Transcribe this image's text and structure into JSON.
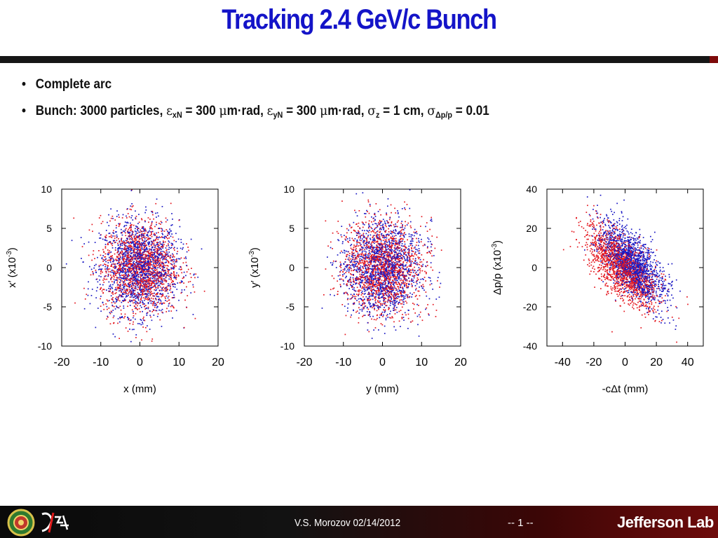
{
  "slide": {
    "title": "Tracking 2.4 GeV/c Bunch",
    "bullets": {
      "b1": "Complete arc",
      "b2": {
        "t1": "Bunch: 3000 particles, ",
        "eps": "ε",
        "sub_x": "xN",
        "t2": " = 300 ",
        "mu1": "μ",
        "t3": "m·rad, ",
        "eps2": "ε",
        "sub_y": "yN",
        "t4": " = 300 ",
        "mu2": "μ",
        "t5": "m·rad, ",
        "sig1": "σ",
        "sub_z": "z",
        "t6": " = 1 cm, ",
        "sig2": "σ",
        "sub_dp": "Δp/p",
        "t7": " = 0.01"
      }
    },
    "bullet_marker": "•"
  },
  "footer": {
    "author": "V.S. Morozov 02/14/2012",
    "page": "-- 1 --",
    "lab": "Jefferson Lab",
    "logo_left_icon": "circular-seal-icon",
    "logo_mid_icon": "eic-ejsa-logo-icon"
  },
  "colors": {
    "title": "#1414c8",
    "series_a": "#e4171f",
    "series_b": "#1b19c4"
  },
  "chart_data": [
    {
      "type": "scatter",
      "xlabel": "x (mm)",
      "ylabel": "x′ (x10",
      "ylabel_exp": "-3",
      "ylabel_end": ")",
      "xlim": [
        -20,
        20
      ],
      "ylim": [
        -10,
        10
      ],
      "xticks": [
        -20,
        -10,
        0,
        10,
        20
      ],
      "yticks": [
        -10,
        -5,
        0,
        5,
        10
      ],
      "series": [
        {
          "color": "#1b19c4",
          "count": 1500,
          "sigma": [
            5,
            3
          ],
          "corr": 0
        },
        {
          "color": "#e4171f",
          "count": 1500,
          "sigma": [
            5,
            3
          ],
          "corr": 0
        }
      ]
    },
    {
      "type": "scatter",
      "xlabel": "y (mm)",
      "ylabel": "y′ (x10",
      "ylabel_exp": "-3",
      "ylabel_end": ")",
      "xlim": [
        -20,
        20
      ],
      "ylim": [
        -10,
        10
      ],
      "xticks": [
        -20,
        -10,
        0,
        10,
        20
      ],
      "yticks": [
        -10,
        -5,
        0,
        5,
        10
      ],
      "series": [
        {
          "color": "#1b19c4",
          "count": 1500,
          "sigma": [
            5,
            3
          ],
          "corr": 0
        },
        {
          "color": "#e4171f",
          "count": 1500,
          "sigma": [
            5,
            3
          ],
          "corr": 0
        }
      ]
    },
    {
      "type": "scatter",
      "xlabel": "-cΔt (mm)",
      "ylabel": "Δp/p  (x10",
      "ylabel_exp": "-3",
      "ylabel_end": ")",
      "xlim": [
        -50,
        50
      ],
      "ylim": [
        -40,
        40
      ],
      "xticks": [
        -40,
        -20,
        0,
        20,
        40
      ],
      "yticks": [
        -40,
        -20,
        0,
        20,
        40
      ],
      "series": [
        {
          "color": "#1b19c4",
          "count": 1500,
          "sigma": [
            10,
            10
          ],
          "corr": -0.65,
          "mean": [
            5,
            2
          ]
        },
        {
          "color": "#e4171f",
          "count": 1500,
          "sigma": [
            11,
            10
          ],
          "corr": -0.65,
          "mean": [
            -2,
            0
          ]
        }
      ]
    }
  ]
}
